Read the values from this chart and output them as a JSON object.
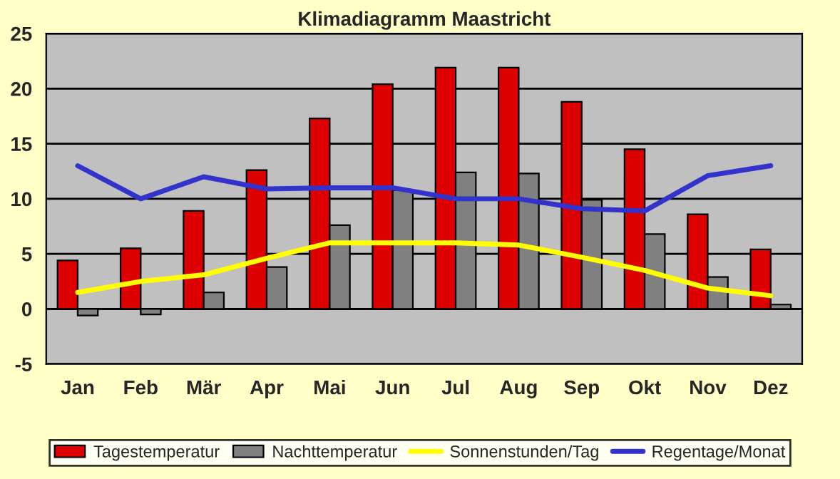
{
  "chart_data": {
    "type": "bar",
    "title": "Klimadiagramm Maastricht",
    "categories": [
      "Jan",
      "Feb",
      "Mär",
      "Apr",
      "Mai",
      "Jun",
      "Jul",
      "Aug",
      "Sep",
      "Okt",
      "Nov",
      "Dez"
    ],
    "series": [
      {
        "name": "Tagestemperatur",
        "color": "#dd0000",
        "values": [
          4.4,
          5.5,
          8.9,
          12.6,
          17.3,
          20.4,
          21.9,
          21.9,
          18.8,
          14.5,
          8.6,
          5.4
        ]
      },
      {
        "name": "Nachttemperatur",
        "color": "#808080",
        "values": [
          -0.6,
          -0.5,
          1.5,
          3.8,
          7.6,
          10.8,
          12.4,
          12.3,
          9.9,
          6.8,
          2.9,
          0.4
        ]
      },
      {
        "name": "Sonnenstunden/Tag",
        "type": "line",
        "color": "#ffff00",
        "values": [
          1.5,
          2.5,
          3.1,
          4.6,
          6.0,
          6.0,
          6.0,
          5.8,
          4.7,
          3.5,
          1.9,
          1.2
        ]
      },
      {
        "name": "Regentage/Monat",
        "type": "line",
        "color": "#3333cc",
        "values": [
          13,
          10,
          12,
          10.9,
          11,
          11,
          10,
          10,
          9.1,
          8.9,
          12.1,
          13
        ]
      }
    ],
    "ylim": [
      -5,
      25
    ],
    "yticks": [
      -5,
      0,
      5,
      10,
      15,
      20,
      25
    ],
    "grid": "y",
    "legend": "bottom",
    "marker": "none",
    "line_style": "solid"
  }
}
